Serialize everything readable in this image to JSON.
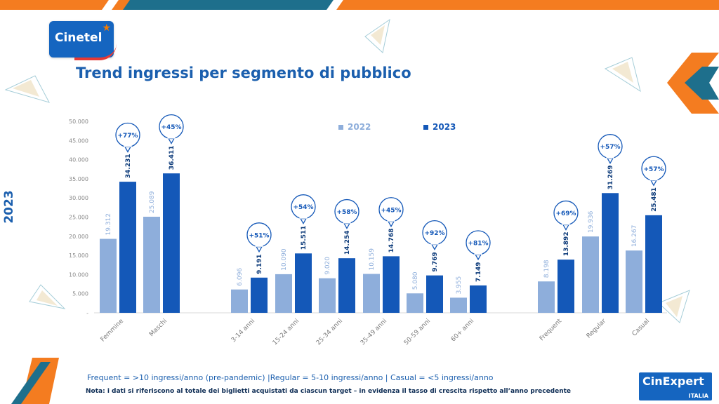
{
  "brand": {
    "left_logo": "Cinetel",
    "right_logo_main": "CinExpert",
    "right_logo_sub": "ITALIA"
  },
  "title": "Trend ingressi per segmento di pubblico",
  "side_label": "2023",
  "footnote_definitions": "Frequent = >10 ingressi/anno (pre-pandemic) |Regular = 5-10 ingressi/anno | Casual = <5 ingressi/anno",
  "footnote_note": "Nota: i dati si riferiscono al totale dei biglietti acquistati da ciascun target – in evidenza il tasso di crescita rispetto all’anno precedente",
  "colors": {
    "light_bar": "#8eaedb",
    "dark_bar": "#1458b8",
    "title": "#1b5fae",
    "orange": "#f47c20",
    "teal": "#1e6f8c"
  },
  "chart_data": {
    "type": "bar",
    "title": "",
    "xlabel": "",
    "ylabel": "",
    "ylim": [
      0,
      50000
    ],
    "yticks": [
      "-",
      "5.000",
      "10.000",
      "15.000",
      "20.000",
      "25.000",
      "30.000",
      "35.000",
      "40.000",
      "45.000",
      "50.000"
    ],
    "grid": false,
    "legend_position": "top-center",
    "categories": [
      "Femmine",
      "Maschi",
      "3-14 anni",
      "15-24 anni",
      "25-34 anni",
      "35-49 anni",
      "50-59 anni",
      "60+ anni",
      "Frequent",
      "Regular",
      "Casual"
    ],
    "series": [
      {
        "name": "2022",
        "values": [
          19312,
          25089,
          6096,
          10090,
          9020,
          10159,
          5080,
          3955,
          8198,
          19936,
          16267
        ],
        "labels": [
          "19.312",
          "25.089",
          "6.096",
          "10.090",
          "9.020",
          "10.159",
          "5.080",
          "3.955",
          "8.198",
          "19.936",
          "16.267"
        ]
      },
      {
        "name": "2023",
        "values": [
          34231,
          36411,
          9191,
          15511,
          14254,
          14768,
          9769,
          7149,
          13892,
          31269,
          25481
        ],
        "labels": [
          "34.231",
          "36.411",
          "9.191",
          "15.511",
          "14.254",
          "14.768",
          "9.769",
          "7.149",
          "13.892",
          "31.269",
          "25.481"
        ]
      }
    ],
    "growth_labels": [
      "+77%",
      "+45%",
      "+51%",
      "+54%",
      "+58%",
      "+45%",
      "+92%",
      "+81%",
      "+69%",
      "+57%",
      "+57%"
    ]
  }
}
